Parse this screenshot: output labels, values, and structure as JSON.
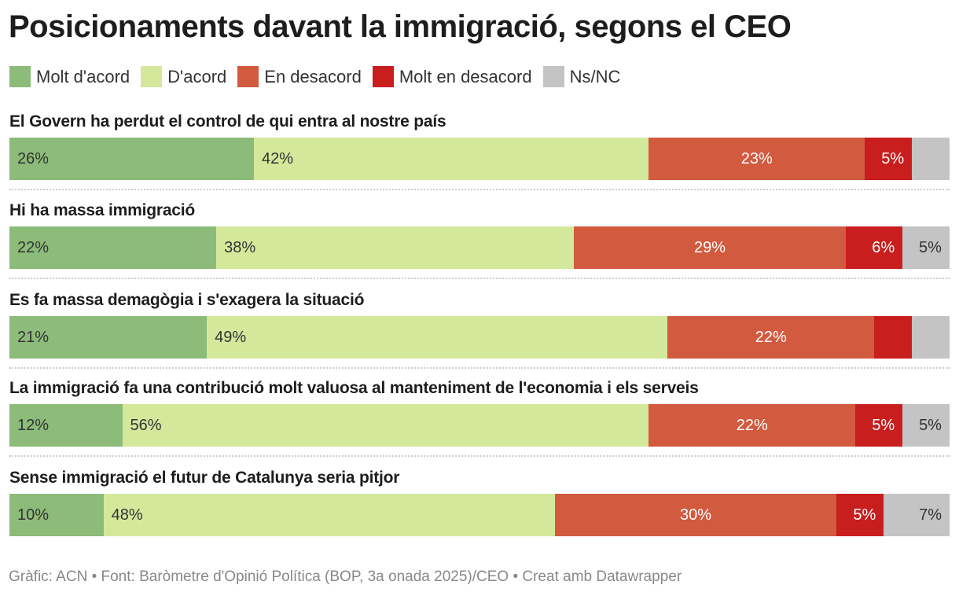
{
  "title": "Posicionaments davant la immigració, segons el CEO",
  "footer": "Gràfic: ACN • Font: Baròmetre d'Opinió Política (BOP, 3a onada 2025)/CEO • Creat amb Datawrapper",
  "chart_data": {
    "type": "bar",
    "orientation": "horizontal-stacked",
    "title": "Posicionaments davant la immigració, segons el CEO",
    "legend_placement": "top",
    "categories": [
      "El Govern ha perdut el control de qui entra al nostre país",
      "Hi ha massa immigració",
      "Es fa massa demagògia i s'exagera la situació",
      "La immigració fa una contribució molt valuosa al manteniment de l'economia i els serveis",
      "Sense immigració el futur de Catalunya seria pitjor"
    ],
    "series": [
      {
        "name": "Molt d'acord",
        "color": "#8dbb79",
        "text_color": "#333333",
        "align": "left",
        "values": [
          26,
          22,
          21,
          12,
          10
        ]
      },
      {
        "name": "D'acord",
        "color": "#d4e89b",
        "text_color": "#333333",
        "align": "left",
        "values": [
          42,
          38,
          49,
          56,
          48
        ]
      },
      {
        "name": "En desacord",
        "color": "#d15a3f",
        "text_color": "#ffffff",
        "align": "center",
        "values": [
          23,
          29,
          22,
          22,
          30
        ]
      },
      {
        "name": "Molt en desacord",
        "color": "#c81e1e",
        "text_color": "#ffffff",
        "align": "right",
        "values": [
          5,
          6,
          4,
          5,
          5
        ]
      },
      {
        "name": "Ns/NC",
        "color": "#c4c4c4",
        "text_color": "#333333",
        "align": "right",
        "values": [
          4,
          5,
          4,
          5,
          7
        ]
      }
    ],
    "hidden_labels": [
      [
        0,
        4
      ],
      [
        2,
        3
      ],
      [
        2,
        4
      ]
    ],
    "xlim": [
      0,
      100
    ]
  }
}
